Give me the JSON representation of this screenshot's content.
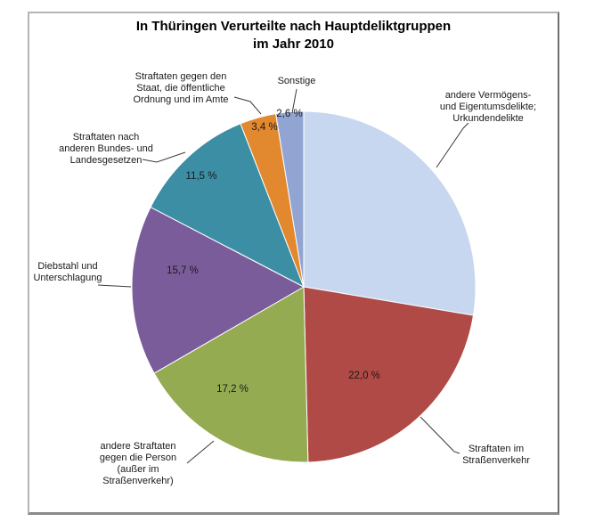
{
  "chart_data": {
    "type": "pie",
    "title": "In Thüringen Verurteilte nach Hauptdeliktgruppen\nim Jahr 2010",
    "unit": "%",
    "direction": "clockwise",
    "start_angle_deg": 0,
    "legend": "none",
    "slices": [
      {
        "key": "vermoegens",
        "label": "andere Vermögens-\nund Eigentumsdelikte;\nUrkundendelikte",
        "value": 27.6,
        "pct_label": "",
        "color": "#c8d7f0"
      },
      {
        "key": "strassenverkehr",
        "label": "Straftaten im\nStraßenverkehr",
        "value": 22.0,
        "pct_label": "22,0 %",
        "color": "#b04a46"
      },
      {
        "key": "person",
        "label": "andere Straftaten\ngegen die Person\n(außer im\nStraßenverkehr)",
        "value": 17.2,
        "pct_label": "17,2 %",
        "color": "#94ab52"
      },
      {
        "key": "diebstahl",
        "label": "Diebstahl und\nUnterschlagung",
        "value": 15.7,
        "pct_label": "15,7 %",
        "color": "#7b5c9a"
      },
      {
        "key": "bundes",
        "label": "Straftaten nach\nanderen Bundes- und\nLandesgesetzen",
        "value": 11.5,
        "pct_label": "11,5 %",
        "color": "#3c8ea5"
      },
      {
        "key": "staat",
        "label": "Straftaten gegen den\nStaat, die öffentliche\nOrdnung und im Amte",
        "value": 3.4,
        "pct_label": "3,4 %",
        "color": "#e2882e"
      },
      {
        "key": "sonstige",
        "label": "Sonstige",
        "value": 2.6,
        "pct_label": "2,6 %",
        "color": "#92a5d2"
      }
    ],
    "label_text_color": "#1a1a1a",
    "slice_border_color": "#ffffff"
  }
}
